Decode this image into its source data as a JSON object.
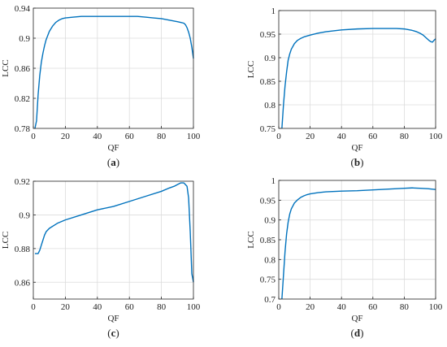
{
  "colors": {
    "line": "#0072BD",
    "grid": "#dcdcdc",
    "axis": "#262626"
  },
  "chart_data": [
    {
      "type": "line",
      "panel_label": "(a)",
      "panel_letter": "a",
      "xlabel": "QF",
      "ylabel": "LCC",
      "xlim": [
        0,
        100
      ],
      "ylim": [
        0.78,
        0.94
      ],
      "xticks": [
        0,
        20,
        40,
        60,
        80,
        100
      ],
      "yticks": [
        0.78,
        0.82,
        0.86,
        0.9,
        0.94
      ],
      "ytick_labels": [
        "0.78",
        "0.82",
        "0.86",
        "0.9",
        "0.94"
      ],
      "grid": true,
      "series": [
        {
          "x": [
            1,
            2,
            3,
            4,
            5,
            6,
            7,
            8,
            10,
            12,
            14,
            16,
            18,
            20,
            25,
            30,
            35,
            40,
            45,
            50,
            55,
            60,
            65,
            70,
            75,
            80,
            85,
            90,
            92,
            94,
            95,
            96,
            97,
            98,
            99,
            100
          ],
          "values": [
            0.78,
            0.79,
            0.825,
            0.85,
            0.868,
            0.88,
            0.89,
            0.898,
            0.909,
            0.916,
            0.921,
            0.924,
            0.926,
            0.927,
            0.928,
            0.929,
            0.929,
            0.929,
            0.929,
            0.929,
            0.929,
            0.929,
            0.929,
            0.928,
            0.927,
            0.926,
            0.924,
            0.922,
            0.921,
            0.92,
            0.918,
            0.914,
            0.908,
            0.9,
            0.888,
            0.873
          ]
        }
      ]
    },
    {
      "type": "line",
      "panel_label": "(b)",
      "panel_letter": "b",
      "xlabel": "QF",
      "ylabel": "LCC",
      "xlim": [
        0,
        100
      ],
      "ylim": [
        0.75,
        1
      ],
      "xticks": [
        0,
        20,
        40,
        60,
        80,
        100
      ],
      "yticks": [
        0.75,
        0.8,
        0.85,
        0.9,
        0.95,
        1
      ],
      "ytick_labels": [
        "0.75",
        "0.8",
        "0.85",
        "0.9",
        "0.95",
        "1"
      ],
      "grid": true,
      "series": [
        {
          "x": [
            2,
            3,
            4,
            5,
            6,
            7,
            8,
            10,
            12,
            14,
            16,
            18,
            20,
            25,
            30,
            40,
            50,
            60,
            65,
            70,
            75,
            80,
            85,
            88,
            90,
            92,
            94,
            96,
            97,
            98,
            99,
            100
          ],
          "values": [
            0.75,
            0.8,
            0.84,
            0.87,
            0.895,
            0.908,
            0.918,
            0.93,
            0.937,
            0.941,
            0.944,
            0.946,
            0.948,
            0.952,
            0.955,
            0.959,
            0.961,
            0.962,
            0.962,
            0.962,
            0.962,
            0.961,
            0.958,
            0.955,
            0.952,
            0.948,
            0.942,
            0.936,
            0.934,
            0.933,
            0.937,
            0.94
          ]
        }
      ]
    },
    {
      "type": "line",
      "panel_label": "(c)",
      "panel_letter": "c",
      "xlabel": "QF",
      "ylabel": "LCC",
      "xlim": [
        0,
        100
      ],
      "ylim": [
        0.85,
        0.92
      ],
      "xticks": [
        0,
        20,
        40,
        60,
        80,
        100
      ],
      "yticks": [
        0.86,
        0.88,
        0.9,
        0.92
      ],
      "ytick_labels": [
        "0.86",
        "0.88",
        "0.9",
        "0.92"
      ],
      "grid": true,
      "series": [
        {
          "x": [
            1,
            2,
            3,
            4,
            5,
            6,
            7,
            8,
            10,
            15,
            20,
            30,
            40,
            50,
            60,
            70,
            80,
            85,
            88,
            90,
            92,
            93,
            94,
            95,
            96,
            97,
            98,
            99,
            100
          ],
          "values": [
            0.877,
            0.877,
            0.877,
            0.879,
            0.882,
            0.885,
            0.888,
            0.89,
            0.892,
            0.895,
            0.897,
            0.9,
            0.903,
            0.905,
            0.908,
            0.911,
            0.914,
            0.916,
            0.917,
            0.918,
            0.919,
            0.919,
            0.919,
            0.918,
            0.917,
            0.91,
            0.89,
            0.865,
            0.86
          ]
        }
      ]
    },
    {
      "type": "line",
      "panel_label": "(d)",
      "panel_letter": "d",
      "xlabel": "QF",
      "ylabel": "LCC",
      "xlim": [
        0,
        100
      ],
      "ylim": [
        0.7,
        1
      ],
      "xticks": [
        0,
        20,
        40,
        60,
        80,
        100
      ],
      "yticks": [
        0.7,
        0.75,
        0.8,
        0.85,
        0.9,
        0.95,
        1
      ],
      "ytick_labels": [
        "0.7",
        "0.75",
        "0.8",
        "0.85",
        "0.9",
        "0.95",
        "1"
      ],
      "grid": true,
      "series": [
        {
          "x": [
            2,
            3,
            4,
            5,
            6,
            7,
            8,
            10,
            12,
            14,
            16,
            18,
            20,
            25,
            30,
            40,
            50,
            60,
            70,
            80,
            85,
            90,
            95,
            100
          ],
          "values": [
            0.7,
            0.76,
            0.82,
            0.865,
            0.895,
            0.915,
            0.928,
            0.943,
            0.951,
            0.957,
            0.961,
            0.964,
            0.966,
            0.969,
            0.971,
            0.973,
            0.974,
            0.976,
            0.978,
            0.98,
            0.981,
            0.98,
            0.979,
            0.977
          ]
        }
      ]
    }
  ]
}
